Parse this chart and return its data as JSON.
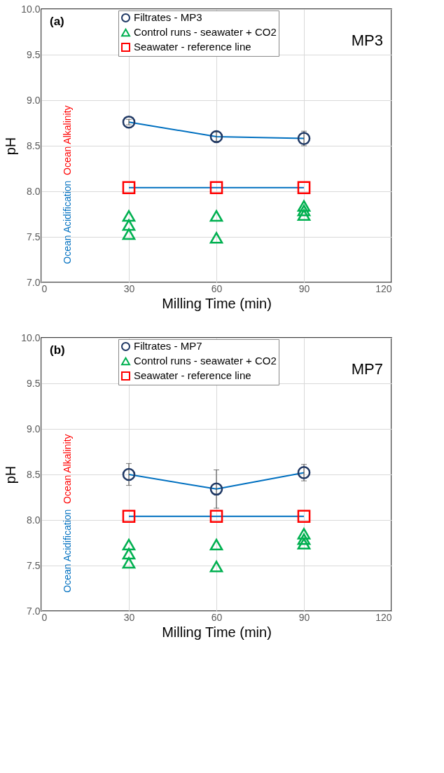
{
  "chart_data": [
    {
      "type": "line",
      "xlabel": "Milling Time (min)",
      "ylabel": "pH",
      "xlim": [
        0,
        120
      ],
      "xticks": [
        0,
        30,
        60,
        90,
        120
      ],
      "ylim": [
        7,
        10
      ],
      "yticks": [
        {
          "value": 7,
          "label": "7.0"
        },
        {
          "value": 7.5,
          "label": "7.5"
        },
        {
          "value": 8,
          "label": "8.0"
        },
        {
          "value": 8.5,
          "label": "8.5"
        },
        {
          "value": 9,
          "label": "9.0"
        },
        {
          "value": 9.5,
          "label": "9.5"
        },
        {
          "value": 10,
          "label": "10.0"
        }
      ],
      "grid": true,
      "legend": "top",
      "annotations": [
        "(a)",
        "MP3",
        "Ocean Alkalinity",
        "Ocean Acidification"
      ],
      "series": [
        {
          "name": "Filtrates - MP3",
          "type": "line",
          "marker": "circle",
          "color": "#1f3864",
          "x": [
            30,
            60,
            90
          ],
          "values": [
            8.76,
            8.6,
            8.58
          ],
          "errors": [
            0.03,
            0.05,
            0.08
          ]
        },
        {
          "name": "Control runs - seawater + CO2",
          "type": "scatter",
          "marker": "triangle",
          "color": "#00b050",
          "x": [
            30,
            30,
            30,
            60,
            60,
            90,
            90,
            90
          ],
          "values": [
            7.73,
            7.63,
            7.53,
            7.73,
            7.49,
            7.84,
            7.79,
            7.74
          ]
        },
        {
          "name": "Seawater - reference line",
          "type": "line",
          "marker": "square",
          "color": "#ff0000",
          "x": [
            30,
            60,
            90
          ],
          "values": [
            8.04,
            8.04,
            8.04
          ]
        }
      ]
    },
    {
      "type": "line",
      "xlabel": "Milling Time (min)",
      "ylabel": "pH",
      "xlim": [
        0,
        120
      ],
      "xticks": [
        0,
        30,
        60,
        90,
        120
      ],
      "ylim": [
        7,
        10
      ],
      "yticks": [
        {
          "value": 7,
          "label": "7.0"
        },
        {
          "value": 7.5,
          "label": "7.5"
        },
        {
          "value": 8,
          "label": "8.0"
        },
        {
          "value": 8.5,
          "label": "8.5"
        },
        {
          "value": 9,
          "label": "9.0"
        },
        {
          "value": 9.5,
          "label": "9.5"
        },
        {
          "value": 10,
          "label": "10.0"
        }
      ],
      "grid": true,
      "legend": "top",
      "annotations": [
        "(b)",
        "MP7",
        "Ocean Alkalinity",
        "Ocean Acidification"
      ],
      "series": [
        {
          "name": "Filtrates - MP7",
          "type": "line",
          "marker": "circle",
          "color": "#1f3864",
          "x": [
            30,
            60,
            90
          ],
          "values": [
            8.5,
            8.34,
            8.52
          ],
          "errors": [
            0.12,
            0.21,
            0.09
          ]
        },
        {
          "name": "Control runs - seawater + CO2",
          "type": "scatter",
          "marker": "triangle",
          "color": "#00b050",
          "x": [
            30,
            30,
            30,
            60,
            60,
            90,
            90,
            90
          ],
          "values": [
            7.73,
            7.63,
            7.53,
            7.73,
            7.49,
            7.85,
            7.79,
            7.74
          ]
        },
        {
          "name": "Seawater - reference line",
          "type": "line",
          "marker": "square",
          "color": "#ff0000",
          "x": [
            30,
            60,
            90
          ],
          "values": [
            8.04,
            8.04,
            8.04
          ]
        }
      ]
    }
  ]
}
